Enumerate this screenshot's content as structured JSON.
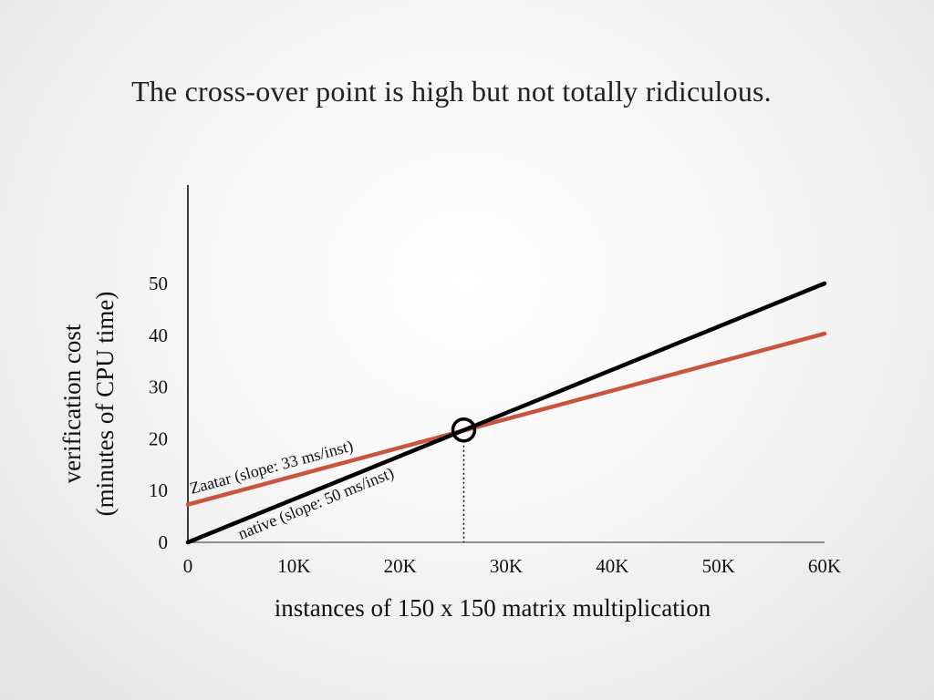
{
  "slide": {
    "title": "The cross-over point is high but not totally ridiculous."
  },
  "chart_data": {
    "type": "line",
    "xlabel": "instances of 150 x 150 matrix multiplication",
    "ylabel_line1": "verification cost",
    "ylabel_line2": "(minutes of CPU time)",
    "xlim": [
      0,
      60000
    ],
    "ylim": [
      0,
      50
    ],
    "x_ticks": [
      0,
      10000,
      20000,
      30000,
      40000,
      50000,
      60000
    ],
    "x_tick_labels": [
      "0",
      "10K",
      "20K",
      "30K",
      "40K",
      "50K",
      "60K"
    ],
    "y_ticks": [
      0,
      10,
      20,
      30,
      40,
      50
    ],
    "y_tick_labels": [
      "0",
      "10",
      "20",
      "30",
      "40",
      "50"
    ],
    "grid": false,
    "series": [
      {
        "name": "native (slope: 50 ms/inst)",
        "color": "#000000",
        "x": [
          0,
          60000
        ],
        "y": [
          0,
          50
        ]
      },
      {
        "name": "Zaatar (slope: 33 ms/inst)",
        "color": "#c8553d",
        "x": [
          0,
          60000
        ],
        "y": [
          7.3,
          40.3
        ]
      }
    ],
    "annotations": {
      "crossover": {
        "x": 26000,
        "y": 21.7,
        "marker": "circle",
        "dropline": "dotted"
      }
    }
  }
}
